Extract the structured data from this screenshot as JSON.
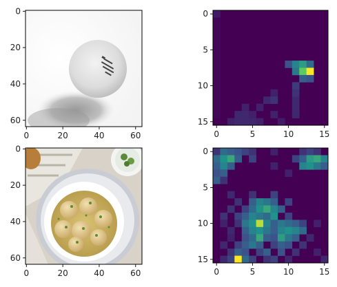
{
  "figure": {
    "layout": "2x2 grid",
    "background": "#ffffff"
  },
  "chart_data": [
    {
      "type": "image",
      "description_of_content": "white ping-pong ball with shadow",
      "xlim": [
        0,
        63
      ],
      "ylim": [
        63,
        0
      ],
      "xticks": [
        0,
        20,
        40,
        60
      ],
      "yticks": [
        0,
        20,
        40,
        60
      ],
      "xtick_labels": [
        "0",
        "20",
        "40",
        "60"
      ],
      "ytick_labels": [
        "0",
        "20",
        "40",
        "60"
      ]
    },
    {
      "type": "heatmap",
      "colormap": "viridis",
      "rows": 16,
      "cols": 16,
      "xticks": [
        0,
        5,
        10,
        15
      ],
      "yticks": [
        0,
        5,
        10,
        15
      ],
      "xtick_labels": [
        "0",
        "5",
        "10",
        "15"
      ],
      "ytick_labels": [
        "0",
        "5",
        "10",
        "15"
      ],
      "cells": [
        [
          0,
          0,
          0.08
        ],
        [
          1,
          0,
          0.02
        ],
        [
          2,
          0,
          0.02
        ],
        [
          3,
          0,
          0.02
        ],
        [
          4,
          0,
          0.02
        ],
        [
          5,
          0,
          0.02
        ],
        [
          6,
          0,
          0.02
        ],
        [
          7,
          0,
          0.02
        ],
        [
          8,
          0,
          0.02
        ],
        [
          9,
          0,
          0.02
        ],
        [
          10,
          0,
          0.02
        ],
        [
          11,
          0,
          0.02
        ],
        [
          12,
          0,
          0.02
        ],
        [
          13,
          0,
          0.02
        ],
        [
          14,
          0,
          0.02
        ],
        [
          7,
          10,
          0.25
        ],
        [
          7,
          11,
          0.45
        ],
        [
          7,
          12,
          0.55
        ],
        [
          7,
          13,
          0.35
        ],
        [
          8,
          11,
          0.4
        ],
        [
          8,
          12,
          0.75
        ],
        [
          8,
          13,
          1.0
        ],
        [
          9,
          12,
          0.3
        ],
        [
          9,
          13,
          0.25
        ],
        [
          10,
          11,
          0.18
        ],
        [
          11,
          11,
          0.15
        ],
        [
          12,
          11,
          0.12
        ],
        [
          13,
          11,
          0.12
        ],
        [
          14,
          11,
          0.12
        ],
        [
          11,
          8,
          0.1
        ],
        [
          12,
          7,
          0.12
        ],
        [
          12,
          8,
          0.15
        ],
        [
          13,
          4,
          0.1
        ],
        [
          13,
          6,
          0.1
        ],
        [
          14,
          3,
          0.12
        ],
        [
          14,
          4,
          0.12
        ],
        [
          14,
          5,
          0.1
        ],
        [
          15,
          2,
          0.1
        ],
        [
          15,
          3,
          0.12
        ],
        [
          15,
          4,
          0.12
        ],
        [
          15,
          5,
          0.12
        ],
        [
          15,
          6,
          0.1
        ],
        [
          14,
          8,
          0.1
        ],
        [
          15,
          9,
          0.08
        ]
      ]
    },
    {
      "type": "image",
      "description_of_content": "bowl of soup with dumplings on a table",
      "xlim": [
        0,
        63
      ],
      "ylim": [
        63,
        0
      ],
      "xticks": [
        0,
        20,
        40,
        60
      ],
      "yticks": [
        0,
        20,
        40,
        60
      ],
      "xtick_labels": [
        "0",
        "20",
        "40",
        "60"
      ],
      "ytick_labels": [
        "0",
        "20",
        "40",
        "60"
      ]
    },
    {
      "type": "heatmap",
      "colormap": "viridis",
      "rows": 16,
      "cols": 16,
      "xticks": [
        0,
        5,
        10,
        15
      ],
      "yticks": [
        0,
        5,
        10,
        15
      ],
      "xtick_labels": [
        "0",
        "5",
        "10",
        "15"
      ],
      "ytick_labels": [
        "0",
        "5",
        "10",
        "15"
      ],
      "cells": [
        [
          0,
          0,
          0.15
        ],
        [
          0,
          1,
          0.35
        ],
        [
          0,
          2,
          0.3
        ],
        [
          0,
          3,
          0.25
        ],
        [
          0,
          4,
          0.2
        ],
        [
          0,
          5,
          0.15
        ],
        [
          0,
          8,
          0.1
        ],
        [
          0,
          12,
          0.15
        ],
        [
          0,
          13,
          0.2
        ],
        [
          0,
          14,
          0.15
        ],
        [
          1,
          0,
          0.35
        ],
        [
          1,
          1,
          0.5
        ],
        [
          1,
          2,
          0.6
        ],
        [
          1,
          3,
          0.3
        ],
        [
          1,
          5,
          0.2
        ],
        [
          1,
          11,
          0.2
        ],
        [
          1,
          12,
          0.3
        ],
        [
          1,
          13,
          0.55
        ],
        [
          1,
          14,
          0.6
        ],
        [
          1,
          15,
          0.45
        ],
        [
          2,
          0,
          0.3
        ],
        [
          2,
          1,
          0.45
        ],
        [
          2,
          2,
          0.3
        ],
        [
          2,
          8,
          0.1
        ],
        [
          2,
          12,
          0.45
        ],
        [
          2,
          13,
          0.5
        ],
        [
          2,
          14,
          0.4
        ],
        [
          2,
          15,
          0.3
        ],
        [
          3,
          0,
          0.25
        ],
        [
          3,
          1,
          0.3
        ],
        [
          3,
          10,
          0.1
        ],
        [
          4,
          0,
          0.3
        ],
        [
          4,
          1,
          0.15
        ],
        [
          6,
          2,
          0.12
        ],
        [
          6,
          5,
          0.15
        ],
        [
          6,
          8,
          0.2
        ],
        [
          7,
          3,
          0.15
        ],
        [
          7,
          5,
          0.3
        ],
        [
          7,
          6,
          0.45
        ],
        [
          7,
          7,
          0.4
        ],
        [
          7,
          8,
          0.3
        ],
        [
          7,
          10,
          0.2
        ],
        [
          8,
          2,
          0.15
        ],
        [
          8,
          4,
          0.2
        ],
        [
          8,
          5,
          0.35
        ],
        [
          8,
          6,
          0.5
        ],
        [
          8,
          7,
          0.6
        ],
        [
          8,
          8,
          0.45
        ],
        [
          8,
          9,
          0.3
        ],
        [
          9,
          1,
          0.15
        ],
        [
          9,
          3,
          0.2
        ],
        [
          9,
          4,
          0.3
        ],
        [
          9,
          5,
          0.45
        ],
        [
          9,
          6,
          0.4
        ],
        [
          9,
          7,
          0.35
        ],
        [
          9,
          8,
          0.5
        ],
        [
          9,
          10,
          0.2
        ],
        [
          10,
          1,
          0.1
        ],
        [
          10,
          3,
          0.15
        ],
        [
          10,
          4,
          0.4
        ],
        [
          10,
          5,
          0.5
        ],
        [
          10,
          6,
          0.9
        ],
        [
          10,
          7,
          0.45
        ],
        [
          10,
          8,
          0.3
        ],
        [
          10,
          9,
          0.4
        ],
        [
          10,
          10,
          0.35
        ],
        [
          10,
          11,
          0.3
        ],
        [
          10,
          12,
          0.2
        ],
        [
          10,
          14,
          0.1
        ],
        [
          11,
          2,
          0.12
        ],
        [
          11,
          4,
          0.3
        ],
        [
          11,
          5,
          0.45
        ],
        [
          11,
          6,
          0.5
        ],
        [
          11,
          7,
          0.4
        ],
        [
          11,
          8,
          0.3
        ],
        [
          11,
          9,
          0.45
        ],
        [
          11,
          10,
          0.5
        ],
        [
          11,
          11,
          0.45
        ],
        [
          11,
          12,
          0.35
        ],
        [
          12,
          2,
          0.1
        ],
        [
          12,
          4,
          0.25
        ],
        [
          12,
          5,
          0.35
        ],
        [
          12,
          6,
          0.6
        ],
        [
          12,
          7,
          0.3
        ],
        [
          12,
          8,
          0.25
        ],
        [
          12,
          9,
          0.55
        ],
        [
          12,
          10,
          0.4
        ],
        [
          12,
          11,
          0.3
        ],
        [
          12,
          13,
          0.12
        ],
        [
          13,
          1,
          0.12
        ],
        [
          13,
          3,
          0.2
        ],
        [
          13,
          4,
          0.3
        ],
        [
          13,
          5,
          0.4
        ],
        [
          13,
          6,
          0.3
        ],
        [
          13,
          8,
          0.2
        ],
        [
          13,
          9,
          0.3
        ],
        [
          13,
          10,
          0.25
        ],
        [
          13,
          12,
          0.15
        ],
        [
          14,
          2,
          0.15
        ],
        [
          14,
          3,
          0.3
        ],
        [
          14,
          4,
          0.25
        ],
        [
          14,
          6,
          0.2
        ],
        [
          14,
          7,
          0.3
        ],
        [
          14,
          9,
          0.25
        ],
        [
          14,
          11,
          0.15
        ],
        [
          14,
          14,
          0.1
        ],
        [
          15,
          1,
          0.12
        ],
        [
          15,
          2,
          0.2
        ],
        [
          15,
          3,
          1.0
        ],
        [
          15,
          4,
          0.35
        ],
        [
          15,
          5,
          0.2
        ],
        [
          15,
          7,
          0.15
        ],
        [
          15,
          8,
          0.2
        ],
        [
          15,
          10,
          0.12
        ],
        [
          15,
          15,
          0.12
        ]
      ]
    }
  ]
}
